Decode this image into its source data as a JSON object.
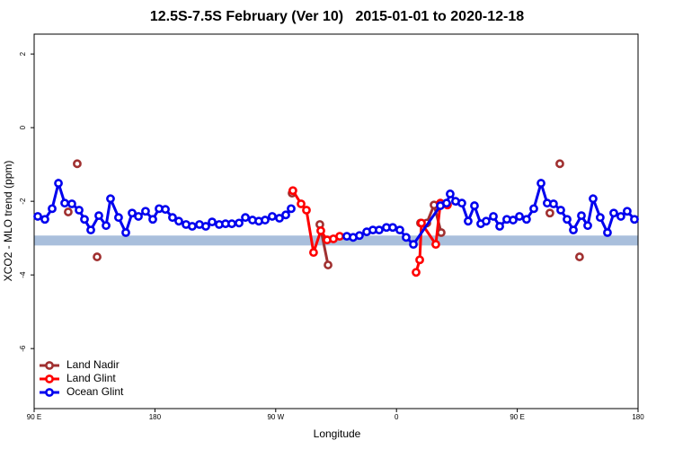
{
  "chart_data": {
    "type": "line",
    "title": "12.5S-7.5S February (Ver 10)   2015-01-01 to 2020-12-18",
    "x_label": "Longitude",
    "y_label": "XCO2 - MLO trend (ppm)",
    "xlim": [
      90,
      540
    ],
    "ylim": [
      -7.63,
      2.54
    ],
    "xticks": [
      {
        "value": 90,
        "label": "90 E"
      },
      {
        "value": 180,
        "label": "180"
      },
      {
        "value": 270,
        "label": "90 W"
      },
      {
        "value": 360,
        "label": "0"
      },
      {
        "value": 450,
        "label": "90 E"
      },
      {
        "value": 540,
        "label": "180"
      }
    ],
    "yticks": [
      -6,
      -4,
      -2,
      0,
      2
    ],
    "grid": false,
    "legend": "bottomleft",
    "reference_band": {
      "ymin": -3.2,
      "ymax": -2.93,
      "color": "#a9bfdc"
    },
    "series": [
      {
        "name": "Land Nadir",
        "color": "#a03030",
        "x": [
          115.4,
          null,
          122.1,
          null,
          136.9,
          null,
          282.2,
          null,
          302.9,
          309.0,
          null,
          377.9,
          382.6,
          388.0,
          393.3,
          null,
          474.3,
          null,
          481.7,
          null,
          496.4
        ],
        "values": [
          -2.29,
          null,
          -0.98,
          null,
          -3.51,
          null,
          -1.78,
          null,
          -2.63,
          -3.73,
          null,
          -2.59,
          -2.59,
          -2.1,
          -2.85,
          null,
          -2.32,
          null,
          -0.98,
          null,
          -3.51
        ]
      },
      {
        "name": "Land Glint",
        "color": "#ff0000",
        "x": [
          282.8,
          288.9,
          292.9,
          298.2,
          303.6,
          308.3,
          313.0,
          317.7,
          null,
          374.6,
          377.3,
          378.6,
          389.3,
          392.7,
          398.0
        ],
        "values": [
          -1.71,
          -2.07,
          -2.24,
          -3.39,
          -2.8,
          -3.05,
          -3.02,
          -2.95,
          null,
          -3.93,
          -3.59,
          -2.59,
          -3.17,
          -2.05,
          -2.1
        ]
      },
      {
        "name": "Ocean Glint",
        "color": "#0000ee",
        "x": [
          92.7,
          98.0,
          103.4,
          108.1,
          112.8,
          118.1,
          123.5,
          127.5,
          132.2,
          138.2,
          143.6,
          146.9,
          152.9,
          158.3,
          163.0,
          167.7,
          173.0,
          178.4,
          183.1,
          187.8,
          193.1,
          197.8,
          203.2,
          207.8,
          213.2,
          217.9,
          222.6,
          227.9,
          232.6,
          237.3,
          242.7,
          247.4,
          252.7,
          257.4,
          262.1,
          267.4,
          272.8,
          277.5,
          281.5,
          null,
          323.0,
          327.7,
          332.4,
          337.8,
          342.4,
          347.1,
          352.5,
          357.2,
          362.5,
          367.2,
          372.6,
          392.7,
          397.3,
          400.0,
          404.0,
          408.7,
          413.4,
          418.1,
          422.8,
          426.8,
          432.2,
          436.9,
          442.2,
          446.9,
          451.6,
          456.9,
          462.3,
          467.7,
          472.3,
          477.0,
          482.4,
          487.1,
          491.8,
          497.8,
          502.5,
          506.5,
          511.8,
          517.2,
          521.9,
          527.2,
          531.9,
          537.3
        ],
        "values": [
          -2.41,
          -2.49,
          -2.2,
          -1.51,
          -2.05,
          -2.07,
          -2.24,
          -2.49,
          -2.78,
          -2.39,
          -2.66,
          -1.93,
          -2.44,
          -2.85,
          -2.32,
          -2.41,
          -2.27,
          -2.49,
          -2.2,
          -2.22,
          -2.44,
          -2.54,
          -2.63,
          -2.68,
          -2.63,
          -2.68,
          -2.56,
          -2.63,
          -2.61,
          -2.61,
          -2.59,
          -2.44,
          -2.51,
          -2.54,
          -2.51,
          -2.41,
          -2.46,
          -2.37,
          -2.2,
          null,
          -2.95,
          -2.98,
          -2.93,
          -2.83,
          -2.78,
          -2.78,
          -2.71,
          -2.71,
          -2.78,
          -2.98,
          -3.17,
          -2.12,
          -2.05,
          -1.8,
          -2.0,
          -2.05,
          -2.54,
          -2.12,
          -2.61,
          -2.54,
          -2.41,
          -2.68,
          -2.49,
          -2.51,
          -2.41,
          -2.49,
          -2.2,
          -1.51,
          -2.05,
          -2.07,
          -2.24,
          -2.49,
          -2.78,
          -2.39,
          -2.66,
          -1.93,
          -2.44,
          -2.85,
          -2.32,
          -2.41,
          -2.27,
          -2.49
        ]
      }
    ]
  }
}
